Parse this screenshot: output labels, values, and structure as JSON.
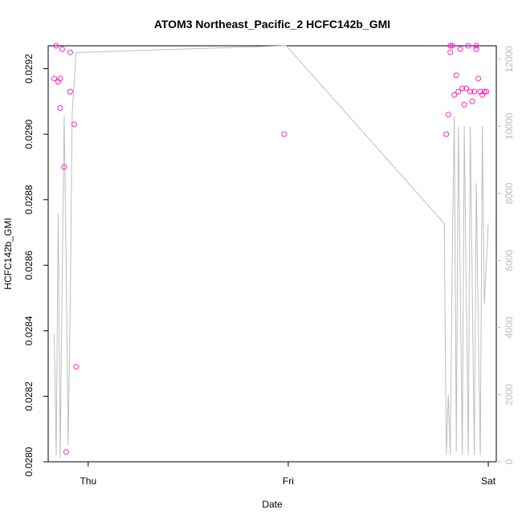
{
  "chart_data": {
    "type": "scatter",
    "title": "ATOM3 Northeast_Pacific_2 HCFC142b_GMI",
    "xlabel": "Date",
    "ylabel": "HCFC142b_GMI",
    "x_ticks": [
      "Thu",
      "Fri",
      "Sat"
    ],
    "xlim": [
      -0.2,
      2.04
    ],
    "ylim_left": [
      0.028,
      0.02927
    ],
    "yticks_left": [
      "0.0280",
      "0.0282",
      "0.0284",
      "0.0286",
      "0.0288",
      "0.0290",
      "0.0292"
    ],
    "ylim_right": [
      0,
      12400
    ],
    "yticks_right": [
      "0",
      "2000",
      "4000",
      "6000",
      "8000",
      "10000",
      "12000"
    ],
    "grid": false,
    "colors": {
      "points": "#ff1fc4",
      "line": "#bebebe",
      "right_axis": "#bdbdbd"
    },
    "series": [
      {
        "kind": "points",
        "axis": "left",
        "x": [
          -0.17,
          -0.16,
          -0.15,
          -0.14,
          -0.14,
          -0.13,
          -0.12,
          -0.11,
          -0.09,
          -0.09,
          -0.07,
          -0.06,
          0.98,
          1.79,
          1.8,
          1.81,
          1.81,
          1.82,
          1.83,
          1.84,
          1.85,
          1.86,
          1.87,
          1.88,
          1.89,
          1.9,
          1.91,
          1.92,
          1.93,
          1.94,
          1.94,
          1.95,
          1.96,
          1.97,
          1.98,
          1.99
        ],
        "y": [
          0.02917,
          0.02927,
          0.02916,
          0.02908,
          0.02917,
          0.02926,
          0.0289,
          0.02803,
          0.02913,
          0.02925,
          0.02903,
          0.02829,
          0.029,
          0.029,
          0.02906,
          0.02927,
          0.02925,
          0.02927,
          0.02912,
          0.02918,
          0.02913,
          0.02926,
          0.02914,
          0.02909,
          0.02914,
          0.02927,
          0.02913,
          0.0291,
          0.02913,
          0.02927,
          0.02926,
          0.02917,
          0.02913,
          0.02912,
          0.02913,
          0.02913
        ]
      },
      {
        "kind": "line",
        "axis": "right",
        "x": [
          -0.17,
          -0.16,
          -0.15,
          -0.14,
          -0.13,
          -0.12,
          -0.11,
          -0.1,
          -0.09,
          -0.08,
          -0.06,
          0.99,
          1.78,
          1.79,
          1.8,
          1.81,
          1.82,
          1.83,
          1.84,
          1.85,
          1.86,
          1.87,
          1.88,
          1.89,
          1.9,
          1.91,
          1.92,
          1.93,
          1.94,
          1.95,
          1.96,
          1.97,
          1.98,
          2.0
        ],
        "y": [
          3800,
          200,
          7400,
          100,
          5400,
          10300,
          5900,
          500,
          4600,
          10400,
          12200,
          12400,
          7100,
          200,
          2000,
          200,
          6200,
          10300,
          300,
          10000,
          5100,
          200,
          10000,
          5100,
          200,
          10000,
          5100,
          200,
          8300,
          4000,
          200,
          10000,
          4700,
          7100
        ]
      }
    ]
  }
}
